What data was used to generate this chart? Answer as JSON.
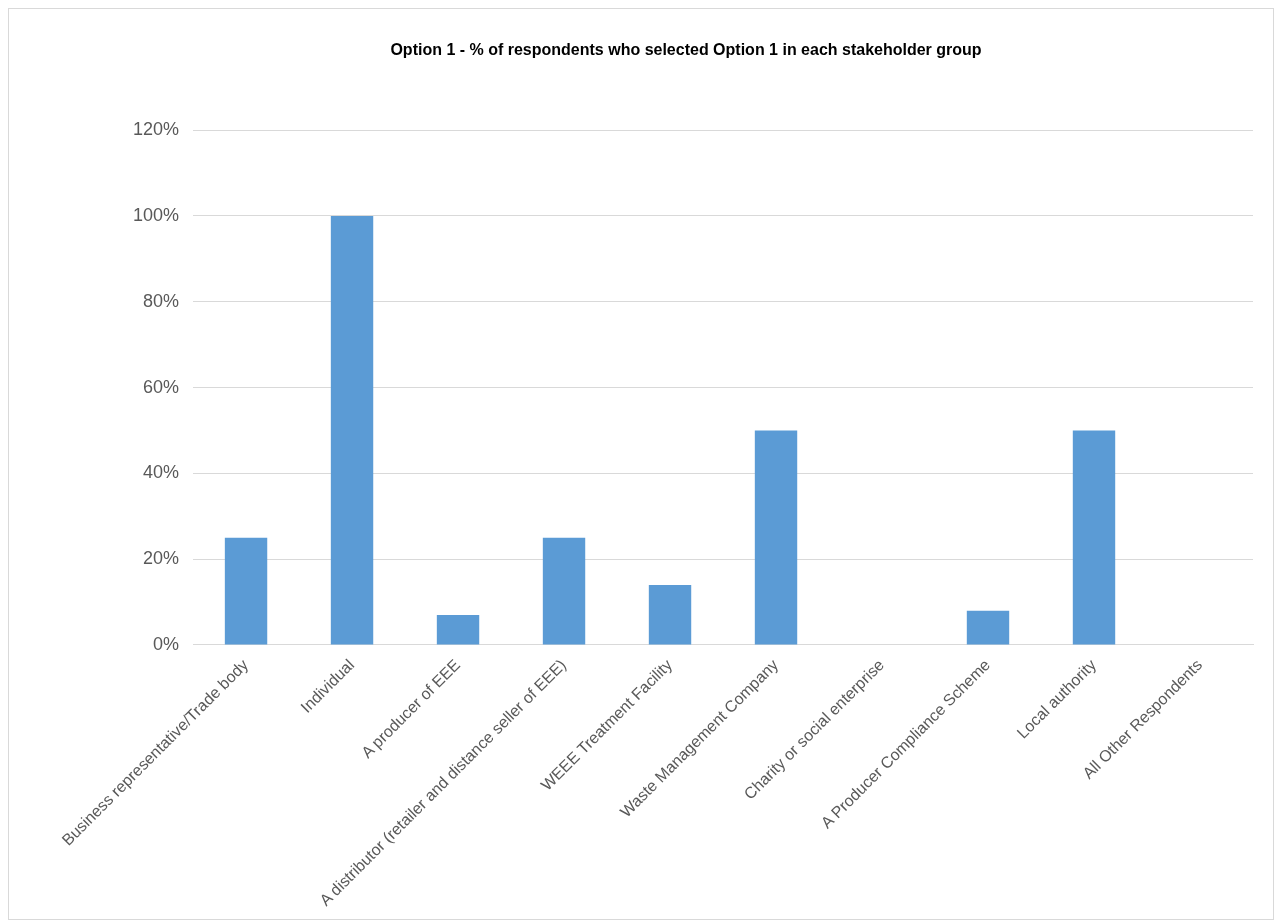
{
  "chart_data": {
    "type": "bar",
    "title": "Option 1 - % of respondents who selected Option 1 in each stakeholder group",
    "categories": [
      "Business representative/Trade body",
      "Individual",
      "A producer of EEE",
      "A distributor (retailer and distance seller of EEE)",
      "WEEE Treatment Facility",
      "Waste Management Company",
      "Charity or social enterprise",
      "A Producer Compliance Scheme",
      "Local authority",
      "All Other Respondents"
    ],
    "values": [
      25,
      100,
      7,
      25,
      14,
      50,
      0,
      8,
      50,
      0
    ],
    "color": "#5b9bd5",
    "ylim": [
      0,
      120
    ],
    "yticks": [
      {
        "value": 0,
        "label": "0%"
      },
      {
        "value": 20,
        "label": "20%"
      },
      {
        "value": 40,
        "label": "40%"
      },
      {
        "value": 60,
        "label": "60%"
      },
      {
        "value": 80,
        "label": "80%"
      },
      {
        "value": 100,
        "label": "100%"
      },
      {
        "value": 120,
        "label": "120%"
      }
    ],
    "grid": "y",
    "legend": false
  }
}
